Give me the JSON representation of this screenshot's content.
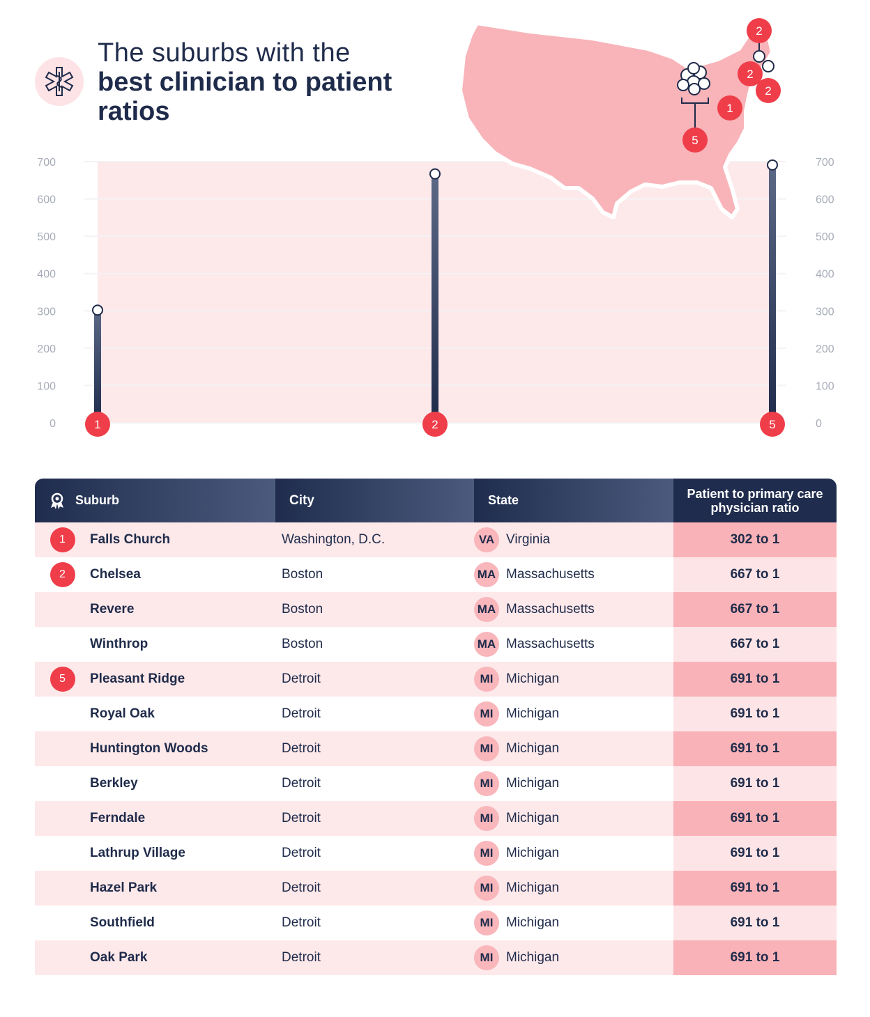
{
  "header": {
    "title_light": "The suburbs with the",
    "title_bold": "best clinician to patient ratios",
    "icon": "medical-star-of-life-icon"
  },
  "colors": {
    "navy": "#1f2b4a",
    "accent_red": "#ef3e4a",
    "pink_bg": "#fde8ea",
    "pink_map": "#f8b4b9"
  },
  "map": {
    "markers": [
      "2",
      "2",
      "2",
      "1",
      "5"
    ]
  },
  "chart_data": {
    "type": "bar",
    "categories": [
      "1",
      "2",
      "5"
    ],
    "values": [
      302,
      667,
      691
    ],
    "ylim": [
      0,
      700
    ],
    "yticks": [
      "0",
      "100",
      "200",
      "300",
      "400",
      "500",
      "600",
      "700"
    ],
    "grid": true
  },
  "table": {
    "headers": {
      "suburb": "Suburb",
      "city": "City",
      "state": "State",
      "ratio": "Patient to primary care physician ratio"
    },
    "rows": [
      {
        "rank": "1",
        "suburb": "Falls Church",
        "city": "Washington, D.C.",
        "state_abbr": "VA",
        "state": "Virginia",
        "ratio": "302 to 1"
      },
      {
        "rank": "2",
        "suburb": "Chelsea",
        "city": "Boston",
        "state_abbr": "MA",
        "state": "Massachusetts",
        "ratio": "667 to 1"
      },
      {
        "rank": "",
        "suburb": "Revere",
        "city": "Boston",
        "state_abbr": "MA",
        "state": "Massachusetts",
        "ratio": "667 to 1"
      },
      {
        "rank": "",
        "suburb": "Winthrop",
        "city": "Boston",
        "state_abbr": "MA",
        "state": "Massachusetts",
        "ratio": "667 to 1"
      },
      {
        "rank": "5",
        "suburb": "Pleasant Ridge",
        "city": "Detroit",
        "state_abbr": "MI",
        "state": "Michigan",
        "ratio": "691 to 1"
      },
      {
        "rank": "",
        "suburb": "Royal Oak",
        "city": "Detroit",
        "state_abbr": "MI",
        "state": "Michigan",
        "ratio": "691 to 1"
      },
      {
        "rank": "",
        "suburb": "Huntington Woods",
        "city": "Detroit",
        "state_abbr": "MI",
        "state": "Michigan",
        "ratio": "691 to 1"
      },
      {
        "rank": "",
        "suburb": "Berkley",
        "city": "Detroit",
        "state_abbr": "MI",
        "state": "Michigan",
        "ratio": "691 to 1"
      },
      {
        "rank": "",
        "suburb": "Ferndale",
        "city": "Detroit",
        "state_abbr": "MI",
        "state": "Michigan",
        "ratio": "691 to 1"
      },
      {
        "rank": "",
        "suburb": "Lathrup Village",
        "city": "Detroit",
        "state_abbr": "MI",
        "state": "Michigan",
        "ratio": "691 to 1"
      },
      {
        "rank": "",
        "suburb": "Hazel Park",
        "city": "Detroit",
        "state_abbr": "MI",
        "state": "Michigan",
        "ratio": "691 to 1"
      },
      {
        "rank": "",
        "suburb": "Southfield",
        "city": "Detroit",
        "state_abbr": "MI",
        "state": "Michigan",
        "ratio": "691 to 1"
      },
      {
        "rank": "",
        "suburb": "Oak Park",
        "city": "Detroit",
        "state_abbr": "MI",
        "state": "Michigan",
        "ratio": "691 to 1"
      }
    ]
  }
}
